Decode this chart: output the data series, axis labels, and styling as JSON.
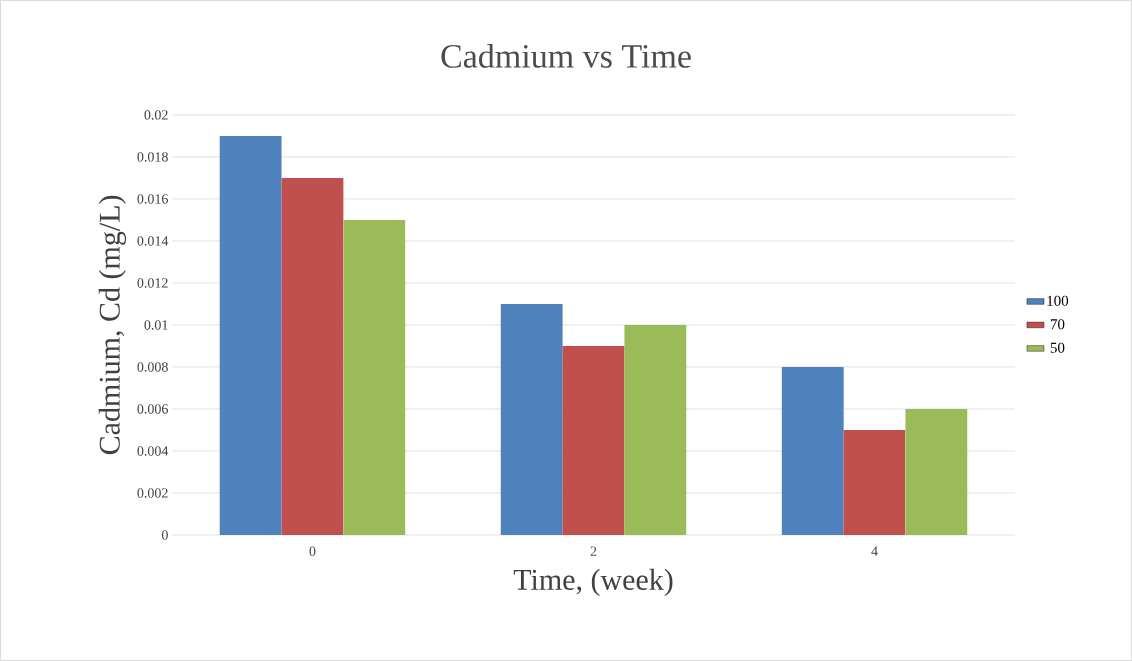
{
  "chart_data": {
    "type": "bar",
    "title": "Cadmium vs Time",
    "xlabel": "Time, (week)",
    "ylabel": "Cadmium, Cd (mg/L)",
    "categories": [
      "0",
      "2",
      "4"
    ],
    "series": [
      {
        "name": "100",
        "color": "#4f81bd",
        "values": [
          0.019,
          0.011,
          0.008
        ]
      },
      {
        "name": "70",
        "color": "#c0504d",
        "values": [
          0.017,
          0.009,
          0.005
        ]
      },
      {
        "name": "50",
        "color": "#9bbb59",
        "values": [
          0.015,
          0.01,
          0.006
        ]
      }
    ],
    "ylim": [
      0,
      0.02
    ],
    "yticks": [
      0,
      0.002,
      0.004,
      0.006,
      0.008,
      0.01,
      0.012,
      0.014,
      0.016,
      0.018,
      0.02
    ],
    "grid": "y",
    "legend": "right"
  }
}
